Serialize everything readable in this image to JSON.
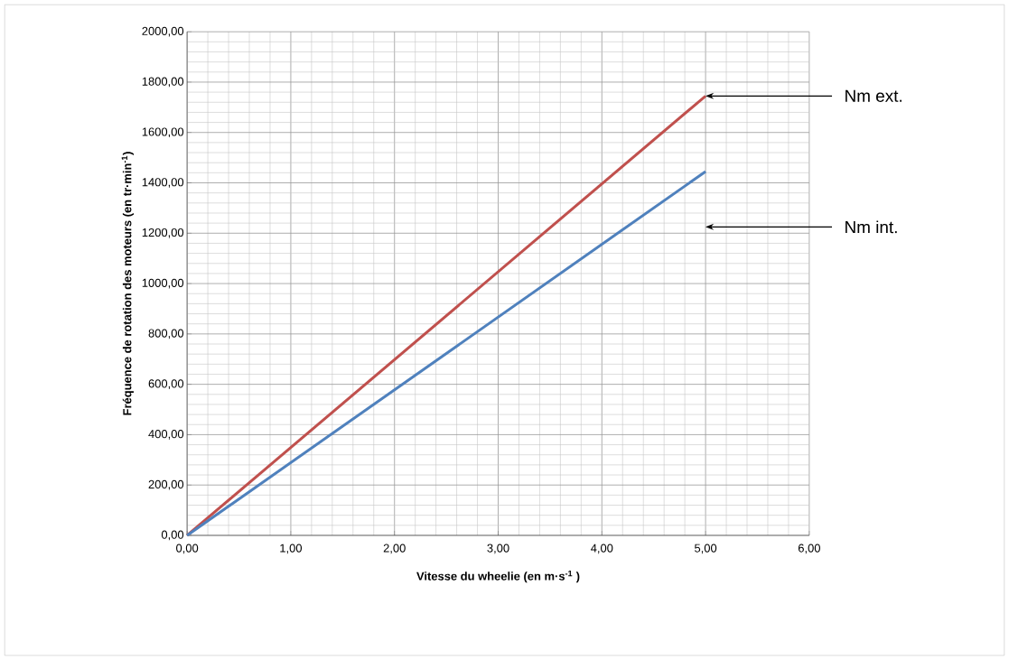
{
  "chart_data": {
    "type": "line",
    "xlabel": "Vitesse du wheelie (en m·s$^{-1}$ )",
    "ylabel": "Fréquence de rotation des moteurs (en tr·min$^{-1}$)",
    "x": [
      0,
      5
    ],
    "series": [
      {
        "color": "#c0504d",
        "values": [
          0,
          1745
        ]
      },
      {
        "color": "#4f81bd",
        "values": [
          0,
          1445
        ]
      }
    ],
    "xlim": [
      0,
      6
    ],
    "ylim": [
      0,
      2000
    ],
    "xticks": [
      {
        "value": 0,
        "label": "0,00"
      },
      {
        "value": 1,
        "label": "1,00"
      },
      {
        "value": 2,
        "label": "2,00"
      },
      {
        "value": 3,
        "label": "3,00"
      },
      {
        "value": 4,
        "label": "4,00"
      },
      {
        "value": 5,
        "label": "5,00"
      },
      {
        "value": 6,
        "label": "6,00"
      }
    ],
    "yticks": [
      {
        "value": 0,
        "label": "0,00"
      },
      {
        "value": 200,
        "label": "200,00"
      },
      {
        "value": 400,
        "label": "400,00"
      },
      {
        "value": 600,
        "label": "600,00"
      },
      {
        "value": 800,
        "label": "800,00"
      },
      {
        "value": 1000,
        "label": "1000,00"
      },
      {
        "value": 1200,
        "label": "1200,00"
      },
      {
        "value": 1400,
        "label": "1400,00"
      },
      {
        "value": 1600,
        "label": "1600,00"
      },
      {
        "value": 1800,
        "label": "1800,00"
      },
      {
        "value": 2000,
        "label": "2000,00"
      }
    ],
    "grid": true,
    "marker": "none",
    "line_style": "solid",
    "annotations": [
      {
        "text": "Nm ext.",
        "x": 5,
        "y": 1745
      },
      "Nm int."
    ]
  }
}
